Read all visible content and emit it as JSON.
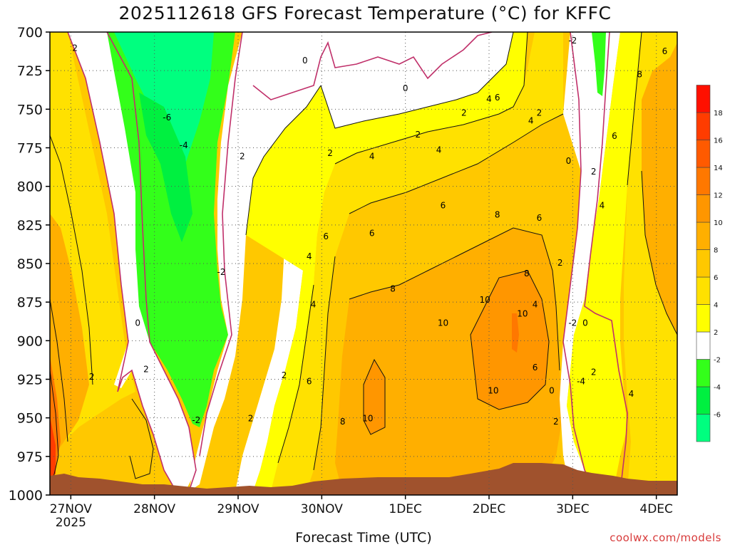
{
  "chart_data": {
    "type": "heatmap",
    "title": "2025112618 GFS Forecast Temperature (°C) for KFFC",
    "xlabel": "Forecast Time (UTC)",
    "ylabel": "",
    "x_range_days": [
      0,
      7.5
    ],
    "y_levels": [
      700,
      725,
      750,
      775,
      800,
      825,
      850,
      875,
      900,
      925,
      950,
      975,
      1000
    ],
    "x_ticks": [
      {
        "day": 0.25,
        "label": "27NOV",
        "sub": "2025"
      },
      {
        "day": 1.25,
        "label": "28NOV",
        "sub": ""
      },
      {
        "day": 2.25,
        "label": "29NOV",
        "sub": ""
      },
      {
        "day": 3.25,
        "label": "30NOV",
        "sub": ""
      },
      {
        "day": 4.25,
        "label": "1DEC",
        "sub": ""
      },
      {
        "day": 5.25,
        "label": "2DEC",
        "sub": ""
      },
      {
        "day": 6.25,
        "label": "3DEC",
        "sub": ""
      },
      {
        "day": 7.25,
        "label": "4DEC",
        "sub": ""
      }
    ],
    "colorbar": [
      {
        "min": -8,
        "max": -6,
        "color": "#00ff7f",
        "label": "-6"
      },
      {
        "min": -6,
        "max": -4,
        "color": "#00f040",
        "label": "-4"
      },
      {
        "min": -4,
        "max": -2,
        "color": "#33ff1a",
        "label": "-2"
      },
      {
        "min": -2,
        "max": 2,
        "color": "#ffffff",
        "label": "2"
      },
      {
        "min": 2,
        "max": 4,
        "color": "#ffff00",
        "label": "4"
      },
      {
        "min": 4,
        "max": 6,
        "color": "#ffe100",
        "label": "6"
      },
      {
        "min": 6,
        "max": 8,
        "color": "#ffc800",
        "label": "8"
      },
      {
        "min": 8,
        "max": 10,
        "color": "#ffaf00",
        "label": "10"
      },
      {
        "min": 10,
        "max": 12,
        "color": "#ff9600",
        "label": "12"
      },
      {
        "min": 12,
        "max": 14,
        "color": "#ff7800",
        "label": "14"
      },
      {
        "min": 14,
        "max": 16,
        "color": "#ff5a00",
        "label": "16"
      },
      {
        "min": 16,
        "max": 18,
        "color": "#ff3c00",
        "label": "18"
      },
      {
        "min": 18,
        "max": 20,
        "color": "#ff1000",
        "label": ""
      }
    ],
    "contour_labels": [
      {
        "day": 0.3,
        "p": 710,
        "t": "2"
      },
      {
        "day": 0.5,
        "p": 923,
        "t": "2"
      },
      {
        "day": 1.05,
        "p": 888,
        "t": "0"
      },
      {
        "day": 1.15,
        "p": 918,
        "t": "2"
      },
      {
        "day": 1.4,
        "p": 755,
        "t": "-6"
      },
      {
        "day": 1.6,
        "p": 773,
        "t": "-4"
      },
      {
        "day": 1.75,
        "p": 951,
        "t": "-2"
      },
      {
        "day": 2.05,
        "p": 855,
        "t": "-2"
      },
      {
        "day": 2.3,
        "p": 780,
        "t": "2"
      },
      {
        "day": 2.4,
        "p": 950,
        "t": "2"
      },
      {
        "day": 2.8,
        "p": 922,
        "t": "2"
      },
      {
        "day": 3.05,
        "p": 718,
        "t": "0"
      },
      {
        "day": 3.35,
        "p": 778,
        "t": "2"
      },
      {
        "day": 3.1,
        "p": 845,
        "t": "4"
      },
      {
        "day": 3.3,
        "p": 832,
        "t": "6"
      },
      {
        "day": 3.15,
        "p": 876,
        "t": "4"
      },
      {
        "day": 3.1,
        "p": 926,
        "t": "6"
      },
      {
        "day": 3.5,
        "p": 952,
        "t": "8"
      },
      {
        "day": 3.8,
        "p": 950,
        "t": "10"
      },
      {
        "day": 3.85,
        "p": 780,
        "t": "4"
      },
      {
        "day": 3.85,
        "p": 830,
        "t": "6"
      },
      {
        "day": 4.1,
        "p": 866,
        "t": "8"
      },
      {
        "day": 4.25,
        "p": 736,
        "t": "0"
      },
      {
        "day": 4.4,
        "p": 766,
        "t": "2"
      },
      {
        "day": 4.65,
        "p": 776,
        "t": "4"
      },
      {
        "day": 4.7,
        "p": 812,
        "t": "6"
      },
      {
        "day": 4.7,
        "p": 888,
        "t": "10"
      },
      {
        "day": 4.95,
        "p": 752,
        "t": "2"
      },
      {
        "day": 5.2,
        "p": 873,
        "t": "10"
      },
      {
        "day": 5.25,
        "p": 743,
        "t": "4"
      },
      {
        "day": 5.35,
        "p": 742,
        "t": "6"
      },
      {
        "day": 5.35,
        "p": 818,
        "t": "8"
      },
      {
        "day": 5.3,
        "p": 932,
        "t": "10"
      },
      {
        "day": 5.65,
        "p": 882,
        "t": "10"
      },
      {
        "day": 5.7,
        "p": 856,
        "t": "8"
      },
      {
        "day": 5.75,
        "p": 757,
        "t": "4"
      },
      {
        "day": 5.85,
        "p": 752,
        "t": "2"
      },
      {
        "day": 5.85,
        "p": 820,
        "t": "6"
      },
      {
        "day": 5.8,
        "p": 876,
        "t": "4"
      },
      {
        "day": 5.8,
        "p": 917,
        "t": "6"
      },
      {
        "day": 6.0,
        "p": 932,
        "t": "0"
      },
      {
        "day": 6.05,
        "p": 952,
        "t": "2"
      },
      {
        "day": 6.1,
        "p": 849,
        "t": "2"
      },
      {
        "day": 6.2,
        "p": 783,
        "t": "0"
      },
      {
        "day": 6.25,
        "p": 705,
        "t": "-2"
      },
      {
        "day": 6.25,
        "p": 888,
        "t": "-2"
      },
      {
        "day": 6.4,
        "p": 888,
        "t": "0"
      },
      {
        "day": 6.35,
        "p": 926,
        "t": "-4"
      },
      {
        "day": 6.5,
        "p": 920,
        "t": "2"
      },
      {
        "day": 6.5,
        "p": 790,
        "t": "2"
      },
      {
        "day": 6.6,
        "p": 812,
        "t": "4"
      },
      {
        "day": 6.75,
        "p": 767,
        "t": "6"
      },
      {
        "day": 6.95,
        "p": 934,
        "t": "4"
      },
      {
        "day": 7.05,
        "p": 727,
        "t": "8"
      },
      {
        "day": 7.35,
        "p": 712,
        "t": "6"
      }
    ]
  },
  "site_credit": "coolwx.com/models"
}
